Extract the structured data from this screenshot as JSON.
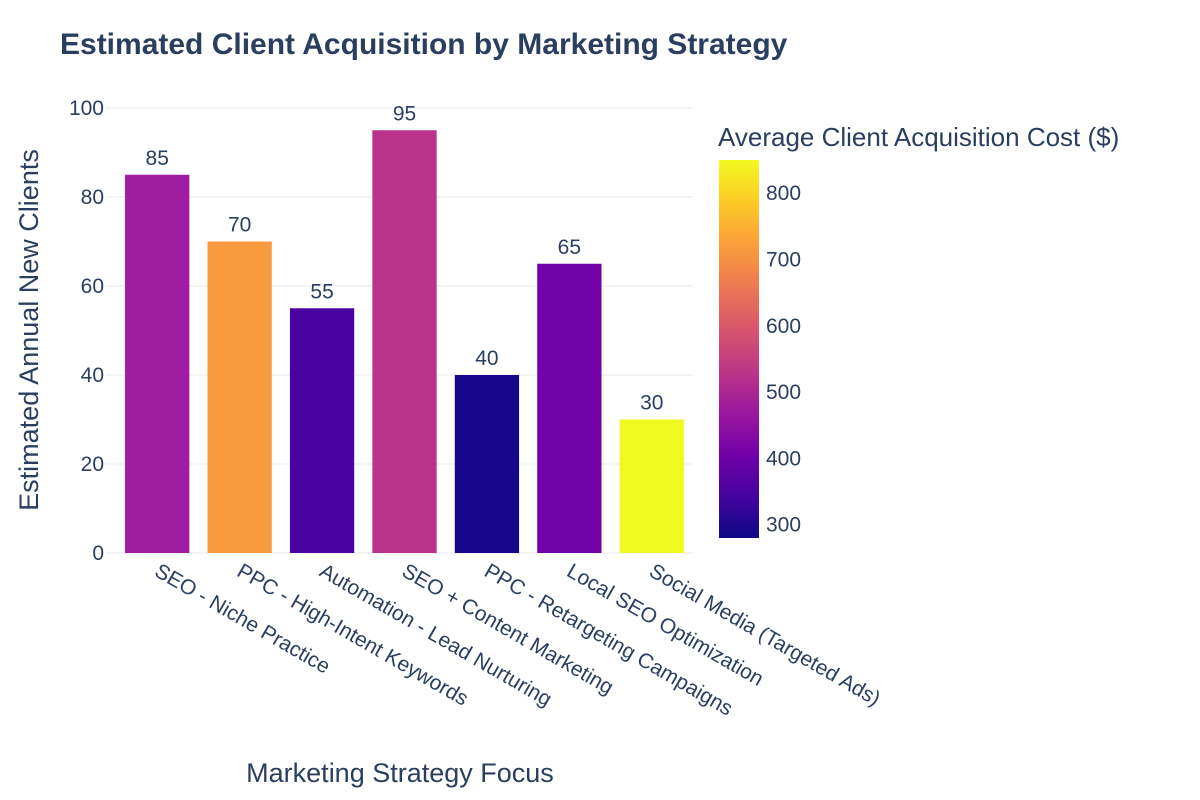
{
  "chart_data": {
    "type": "bar",
    "title": "Estimated Client Acquisition by Marketing Strategy",
    "xlabel": "Marketing Strategy Focus",
    "ylabel": "Estimated Annual New Clients",
    "ylim": [
      0,
      100
    ],
    "yticks": [
      0,
      20,
      40,
      60,
      80,
      100
    ],
    "grid": true,
    "categories": [
      "SEO - Niche Practice",
      "PPC - High-Intent Keywords",
      "Automation - Lead Nurturing",
      "SEO + Content Marketing",
      "PPC - Retargeting Campaigns",
      "Local SEO Optimization",
      "Social Media (Targeted Ads)"
    ],
    "values": [
      85,
      70,
      55,
      95,
      40,
      65,
      30
    ],
    "color_values": [
      500,
      700,
      370,
      530,
      290,
      450,
      850
    ],
    "bar_colors": [
      "#a01ca1",
      "#f99a3e",
      "#4903a0",
      "#b83389",
      "#17068c",
      "#7301a8",
      "#f0f921"
    ],
    "colorbar": {
      "title": "Average Client Acquisition Cost ($)",
      "range": [
        280,
        850
      ],
      "ticks": [
        300,
        400,
        500,
        600,
        700,
        800
      ],
      "colorscale": "Plasma"
    }
  }
}
